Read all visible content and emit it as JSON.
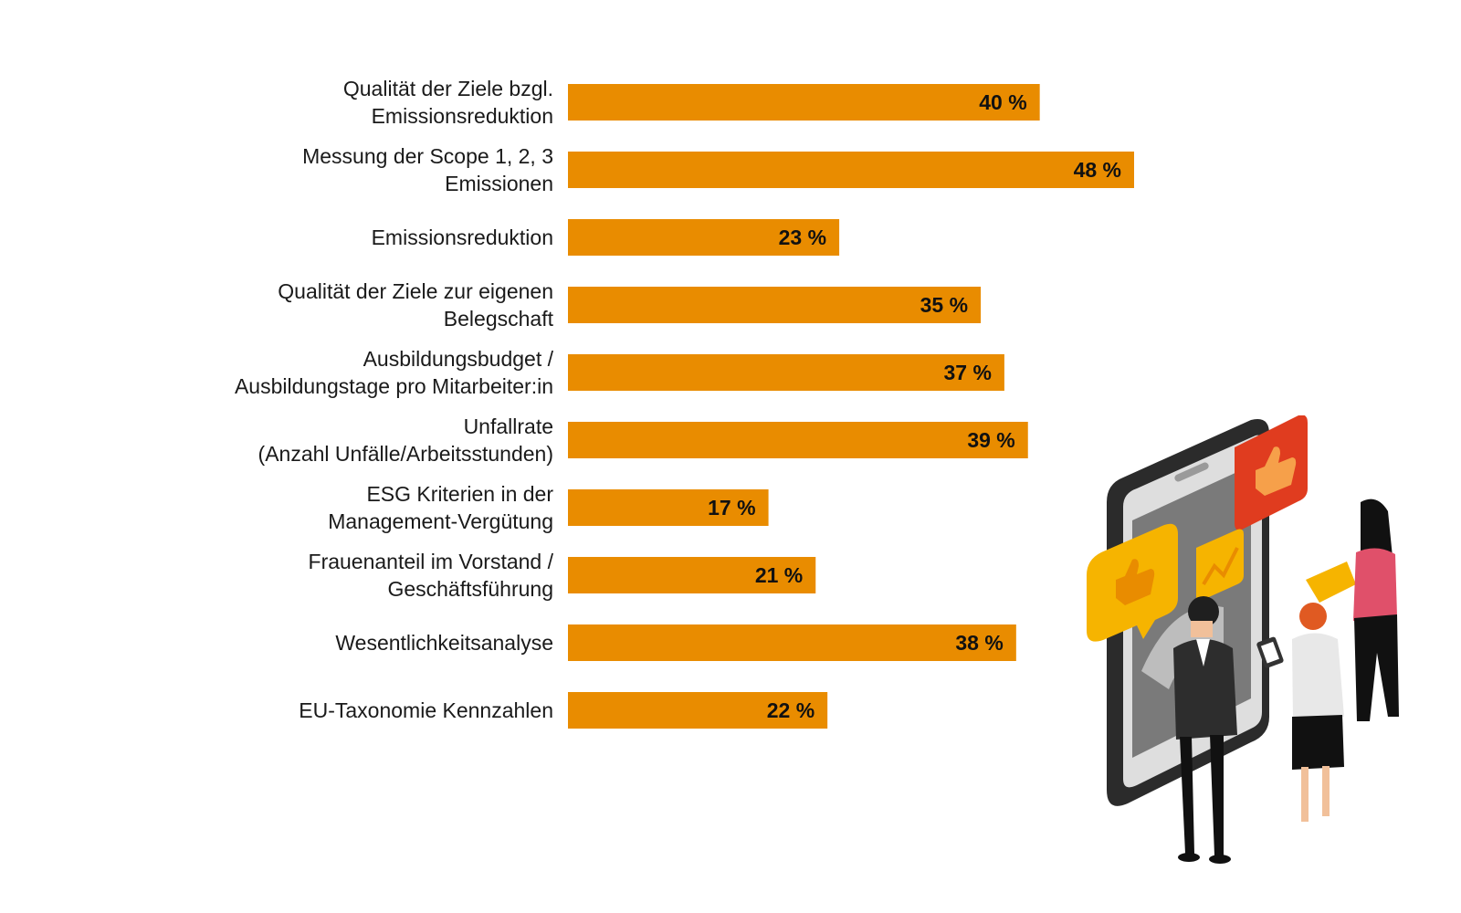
{
  "chart_data": {
    "type": "bar",
    "orientation": "horizontal",
    "title": "",
    "xlabel": "",
    "ylabel": "",
    "unit": "%",
    "xlim": [
      0,
      48
    ],
    "grid": false,
    "legend": "none",
    "bar_color": "#E98C00",
    "categories": [
      [
        "Qualität der Ziele bzgl.",
        "Emissionsreduktion"
      ],
      [
        "Messung der Scope 1, 2, 3",
        "Emissionen"
      ],
      [
        "Emissionsreduktion"
      ],
      [
        "Qualität der Ziele zur eigenen",
        "Belegschaft"
      ],
      [
        "Ausbildungsbudget /",
        "Ausbildungstage pro Mitarbeiter:in"
      ],
      [
        "Unfallrate",
        "(Anzahl Unfälle/Arbeitsstunden)"
      ],
      [
        "ESG Kriterien in der",
        "Management-Vergütung"
      ],
      [
        "Frauenanteil im Vorstand /",
        "Geschäftsführung"
      ],
      [
        "Wesentlichkeitsanalyse"
      ],
      [
        "EU-Taxonomie Kennzahlen"
      ]
    ],
    "values": [
      40,
      48,
      23,
      35,
      37,
      39,
      17,
      21,
      38,
      22
    ],
    "value_labels": [
      "40 %",
      "48 %",
      "23 %",
      "35 %",
      "37 %",
      "39 %",
      "17 %",
      "21 %",
      "38 %",
      "22 %"
    ]
  },
  "illustration": {
    "icons": [
      "phone-icon",
      "thumbs-up-icon",
      "line-chart-icon",
      "people-icon"
    ],
    "colors": {
      "yellow": "#F6B400",
      "red": "#E03C1F",
      "pink": "#E0506A"
    }
  }
}
